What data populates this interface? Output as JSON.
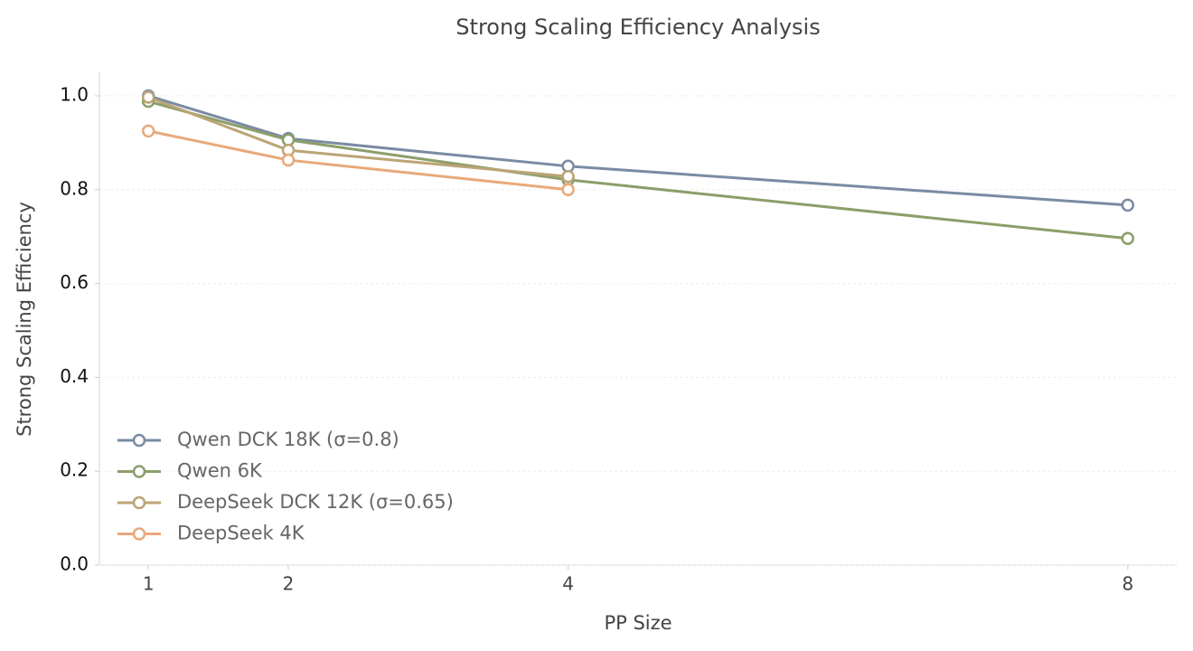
{
  "chart_data": {
    "type": "line",
    "title": "Strong Scaling Efficiency Analysis",
    "x_label": "PP Size",
    "y_label": "Strong Scaling Efficiency",
    "xlim": [
      0.65,
      8.35
    ],
    "xticks": [
      1,
      2,
      4,
      8
    ],
    "ylim": [
      0,
      1.05
    ],
    "yticks": [
      {
        "value": 0,
        "label": "0.0"
      },
      {
        "value": 0.2,
        "label": "0.2"
      },
      {
        "value": 0.4,
        "label": "0.4"
      },
      {
        "value": 0.6,
        "label": "0.6"
      },
      {
        "value": 0.8,
        "label": "0.8"
      },
      {
        "value": 1,
        "label": "1.0"
      }
    ],
    "grid": true,
    "legend": "lower left",
    "series": [
      {
        "name": "Qwen DCK 18K (σ=0.8)",
        "color": "#7a8ba3",
        "x": [
          1,
          2,
          4,
          8
        ],
        "values": [
          1.0,
          0.909,
          0.85,
          0.767
        ]
      },
      {
        "name": "Qwen 6K",
        "color": "#8c9e6a",
        "x": [
          1,
          2,
          4,
          8
        ],
        "values": [
          0.988,
          0.906,
          0.821,
          0.696
        ]
      },
      {
        "name": "DeepSeek DCK 12K (σ=0.65)",
        "color": "#bba476",
        "x": [
          1,
          2,
          4
        ],
        "values": [
          0.997,
          0.884,
          0.828
        ]
      },
      {
        "name": "DeepSeek 4K",
        "color": "#e8a97a",
        "x": [
          1,
          2,
          4
        ],
        "values": [
          0.925,
          0.863,
          0.8
        ]
      }
    ]
  }
}
